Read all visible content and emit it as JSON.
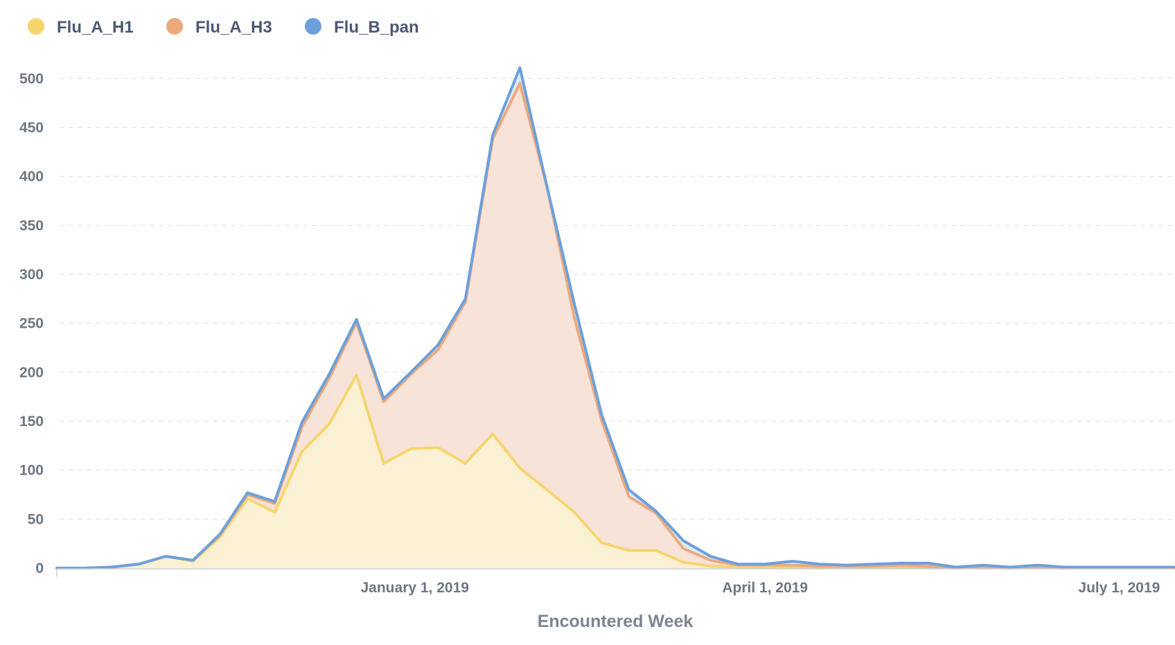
{
  "chart_data": {
    "type": "area",
    "stacked": true,
    "xlabel": "Encountered Week",
    "ylabel": "",
    "ylim": [
      0,
      520
    ],
    "yticks": [
      0,
      50,
      100,
      150,
      200,
      250,
      300,
      350,
      400,
      450,
      500
    ],
    "xticks": [
      {
        "label": "January 1, 2019",
        "date": "2019-01-01"
      },
      {
        "label": "April 1, 2019",
        "date": "2019-04-01"
      },
      {
        "label": "July 1, 2019",
        "date": "2019-07-01"
      }
    ],
    "xlim": [
      "2018-10-01",
      "2019-07-15"
    ],
    "grid": "horizontal dashed",
    "legend_position": "top-left",
    "x": [
      "2018-10-01",
      "2018-10-08",
      "2018-10-15",
      "2018-10-22",
      "2018-10-29",
      "2018-11-05",
      "2018-11-12",
      "2018-11-19",
      "2018-11-26",
      "2018-12-03",
      "2018-12-10",
      "2018-12-17",
      "2018-12-24",
      "2018-12-31",
      "2019-01-07",
      "2019-01-14",
      "2019-01-21",
      "2019-01-28",
      "2019-02-04",
      "2019-02-11",
      "2019-02-18",
      "2019-02-25",
      "2019-03-04",
      "2019-03-11",
      "2019-03-18",
      "2019-03-25",
      "2019-04-01",
      "2019-04-08",
      "2019-04-15",
      "2019-04-22",
      "2019-04-29",
      "2019-05-06",
      "2019-05-13",
      "2019-05-20",
      "2019-05-27",
      "2019-06-03",
      "2019-06-10",
      "2019-06-17",
      "2019-06-24",
      "2019-07-01",
      "2019-07-08",
      "2019-07-15"
    ],
    "series": [
      {
        "name": "Flu_A_H1",
        "color": "#f6d56e",
        "fill": "#faf1d4",
        "values": [
          0,
          0,
          1,
          4,
          12,
          7,
          32,
          71,
          57,
          119,
          147,
          197,
          107,
          122,
          123,
          107,
          137,
          102,
          80,
          57,
          26,
          18,
          18,
          6,
          2,
          1,
          1,
          1,
          0,
          1,
          1,
          1,
          1,
          0,
          1,
          0,
          1,
          0,
          0,
          0,
          0,
          0
        ]
      },
      {
        "name": "Flu_A_H3",
        "color": "#eba97c",
        "fill": "#f7e3d8",
        "values": [
          0,
          0,
          0,
          0,
          0,
          1,
          2,
          4,
          9,
          25,
          47,
          54,
          63,
          76,
          100,
          165,
          301,
          393,
          309,
          199,
          125,
          55,
          38,
          14,
          6,
          2,
          2,
          2,
          2,
          1,
          1,
          2,
          1,
          0,
          0,
          0,
          0,
          0,
          0,
          0,
          0,
          0
        ]
      },
      {
        "name": "Flu_B_pan",
        "color": "#6ca0dc",
        "fill": "#dde9f7",
        "values": [
          0,
          0,
          0,
          0,
          0,
          0,
          1,
          2,
          2,
          5,
          4,
          3,
          3,
          2,
          5,
          3,
          4,
          16,
          0,
          14,
          6,
          7,
          2,
          8,
          4,
          1,
          1,
          4,
          2,
          1,
          2,
          2,
          3,
          1,
          2,
          1,
          2,
          1,
          1,
          1,
          1,
          1
        ]
      }
    ]
  }
}
